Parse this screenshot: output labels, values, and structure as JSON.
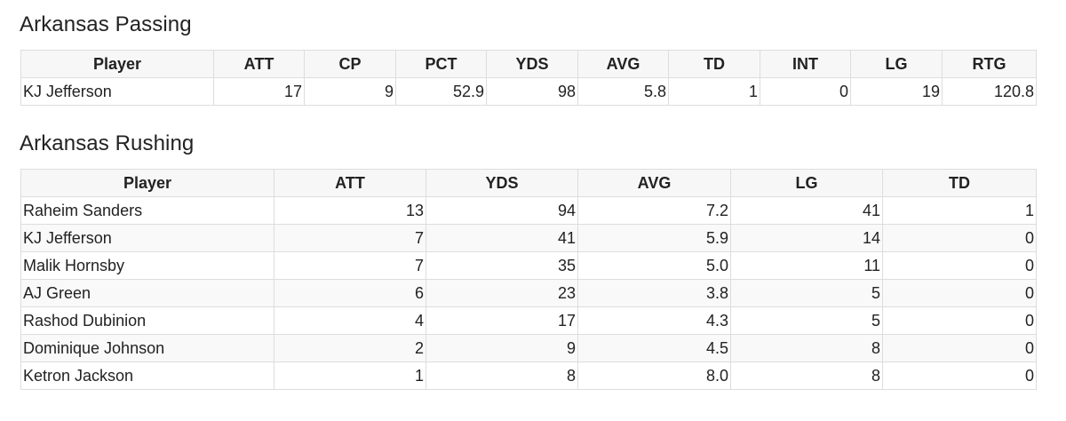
{
  "passing": {
    "title": "Arkansas Passing",
    "headers": [
      "Player",
      "ATT",
      "CP",
      "PCT",
      "YDS",
      "AVG",
      "TD",
      "INT",
      "LG",
      "RTG"
    ],
    "rows": [
      [
        "KJ Jefferson",
        "17",
        "9",
        "52.9",
        "98",
        "5.8",
        "1",
        "0",
        "19",
        "120.8"
      ]
    ]
  },
  "rushing": {
    "title": "Arkansas Rushing",
    "headers": [
      "Player",
      "ATT",
      "YDS",
      "AVG",
      "LG",
      "TD"
    ],
    "rows": [
      [
        "Raheim Sanders",
        "13",
        "94",
        "7.2",
        "41",
        "1"
      ],
      [
        "KJ Jefferson",
        "7",
        "41",
        "5.9",
        "14",
        "0"
      ],
      [
        "Malik Hornsby",
        "7",
        "35",
        "5.0",
        "11",
        "0"
      ],
      [
        "AJ Green",
        "6",
        "23",
        "3.8",
        "5",
        "0"
      ],
      [
        "Rashod Dubinion",
        "4",
        "17",
        "4.3",
        "5",
        "0"
      ],
      [
        "Dominique Johnson",
        "2",
        "9",
        "4.5",
        "8",
        "0"
      ],
      [
        "Ketron Jackson",
        "1",
        "8",
        "8.0",
        "8",
        "0"
      ]
    ]
  }
}
